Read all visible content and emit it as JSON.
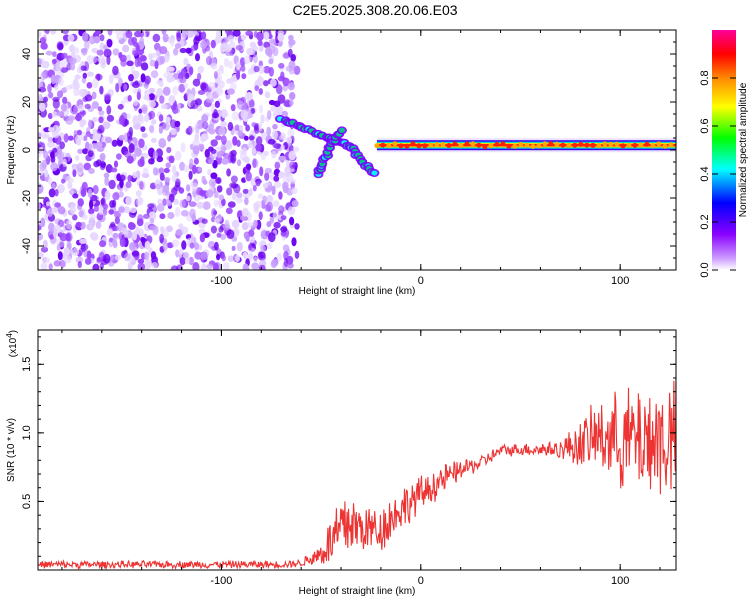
{
  "title": "C2E5.2025.308.20.06.E03",
  "chart_data": [
    {
      "type": "heatmap",
      "title": "C2E5.2025.308.20.06.E03",
      "xlabel": "Height of straight line (km)",
      "ylabel": "Frequency (Hz)",
      "xlim": [
        -192,
        128
      ],
      "ylim": [
        -50,
        50
      ],
      "x_ticks": [
        -100,
        0,
        100
      ],
      "x_tick_labels": [
        "-100",
        "0",
        "100"
      ],
      "y_ticks": [
        -40,
        -20,
        0,
        20,
        40
      ],
      "y_tick_labels": [
        "-40",
        "-20",
        "0",
        "20",
        "40"
      ],
      "colorbar": {
        "label": "Normalized spectral amplitude",
        "range": [
          0,
          1
        ],
        "ticks": [
          0.0,
          0.2,
          0.4,
          0.6,
          0.8
        ],
        "tick_labels": [
          "0.0",
          "0.2",
          "0.4",
          "0.6",
          "0.8"
        ],
        "colors": [
          "#ffffff",
          "#8800ff",
          "#0000ff",
          "#00ffff",
          "#00ff00",
          "#ffff00",
          "#ff8800",
          "#ff0000",
          "#ff00aa"
        ]
      },
      "regions": [
        {
          "name": "broadband noise",
          "x_range": [
            -192,
            -62
          ],
          "y_range": [
            -50,
            50
          ],
          "amplitude": 0.12
        },
        {
          "name": "dispersive branch",
          "x": [
            -70,
            -50,
            -36,
            -24
          ],
          "y": [
            13,
            6,
            2,
            -10
          ],
          "amplitude": 0.35
        },
        {
          "name": "dispersive branch 2",
          "x": [
            -52,
            -46,
            -40
          ],
          "y": [
            -10,
            0,
            8
          ],
          "amplitude": 0.3
        },
        {
          "name": "steady signal",
          "x_range": [
            -22,
            128
          ],
          "frequency": 2,
          "amplitude": 0.95
        }
      ]
    },
    {
      "type": "line",
      "xlabel": "Height of straight line (km)",
      "ylabel": "SNR (10 * v/v)",
      "y_multiplier": "(x10",
      "y_multiplier_exp": "4",
      "y_multiplier_close": ")",
      "xlim": [
        -192,
        128
      ],
      "ylim": [
        0,
        1.75
      ],
      "x_ticks": [
        -100,
        0,
        100
      ],
      "x_tick_labels": [
        "-100",
        "0",
        "100"
      ],
      "y_ticks": [
        0.5,
        1.0,
        1.5
      ],
      "y_tick_labels": [
        "0.5",
        "1.0",
        "1.5"
      ],
      "series": [
        {
          "name": "SNR",
          "color": "#ee3333",
          "x": [
            -192,
            -150,
            -100,
            -70,
            -60,
            -50,
            -42,
            -36,
            -30,
            -20,
            -10,
            0,
            10,
            20,
            30,
            40,
            50,
            60,
            70,
            80,
            90,
            100,
            110,
            120,
            128
          ],
          "y": [
            0.04,
            0.04,
            0.04,
            0.04,
            0.05,
            0.12,
            0.25,
            0.35,
            0.3,
            0.3,
            0.45,
            0.55,
            0.65,
            0.73,
            0.78,
            0.87,
            0.88,
            0.88,
            0.88,
            0.92,
            0.98,
            0.95,
            0.95,
            0.95,
            0.95
          ],
          "noise_amplitude": [
            0.03,
            0.03,
            0.03,
            0.03,
            0.03,
            0.1,
            0.3,
            0.3,
            0.2,
            0.2,
            0.18,
            0.15,
            0.13,
            0.08,
            0.06,
            0.05,
            0.05,
            0.06,
            0.08,
            0.2,
            0.3,
            0.4,
            0.45,
            0.5,
            0.5
          ]
        }
      ]
    }
  ]
}
